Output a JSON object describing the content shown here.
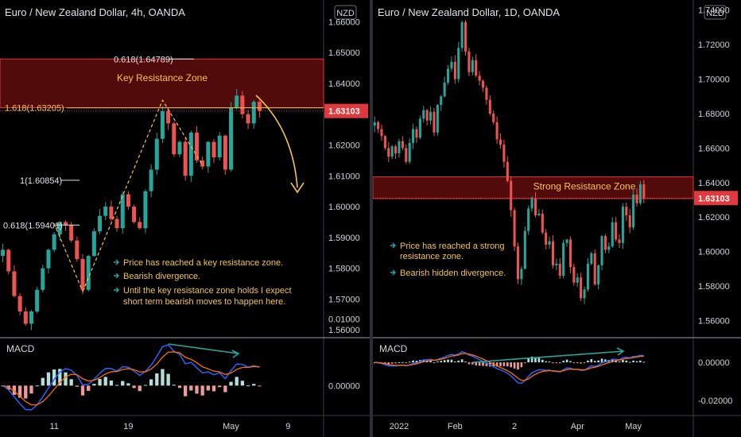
{
  "chart_data": [
    {
      "type": "candlestick",
      "title": "Euro / New Zealand Dollar, 4h, OANDA",
      "currency": "NZD",
      "ylim": [
        1.558,
        1.666
      ],
      "y_ticks": [
        "1.66000",
        "1.65000",
        "1.64000",
        "1.63000",
        "1.62000",
        "1.61000",
        "1.60000",
        "1.59000",
        "1.58000",
        "1.57000",
        "1.56000"
      ],
      "last_price": "1.63103",
      "x_ticks": [
        {
          "label": "11",
          "bar": 9
        },
        {
          "label": "19",
          "bar": 22
        },
        {
          "label": "May",
          "bar": 40
        },
        {
          "label": "9",
          "bar": 50
        }
      ],
      "closes": [
        1.586,
        1.579,
        1.571,
        1.566,
        1.562,
        1.566,
        1.573,
        1.58,
        1.586,
        1.591,
        1.595,
        1.594,
        1.589,
        1.583,
        1.573,
        1.584,
        1.592,
        1.597,
        1.6,
        1.596,
        1.593,
        1.604,
        1.6,
        1.595,
        1.593,
        1.605,
        1.612,
        1.622,
        1.631,
        1.627,
        1.617,
        1.621,
        1.61,
        1.624,
        1.615,
        1.613,
        1.621,
        1.616,
        1.623,
        1.612,
        1.632,
        1.636,
        1.63,
        1.627,
        1.634,
        1.631
      ],
      "zone": {
        "label": "Key Resistance Zone",
        "from": 1.6321,
        "to": 1.6479
      },
      "fib_levels": [
        {
          "label": "0.618(1.64789)",
          "value": 1.64789
        },
        {
          "label": "1.618(1.63205)",
          "value": 1.63205
        },
        {
          "label": "1(1.60854)",
          "value": 1.60854
        },
        {
          "label": "0.618(1.59401)",
          "value": 1.59401
        }
      ],
      "notes": [
        "Price has reached a key resistance zone.",
        "Bearish divergence.",
        "Until the key resistance zone holds I expect",
        "short term bearish moves to happen here."
      ],
      "macd": {
        "label": "MACD",
        "ylim": [
          -0.0045,
          0.0072
        ],
        "ticks": [
          "0.01000",
          "0.00000"
        ],
        "tick_values": [
          0.01,
          0.0
        ]
      }
    },
    {
      "type": "candlestick",
      "title": "Euro / New Zealand Dollar, 1D, OANDA",
      "currency": "NZD",
      "ylim": [
        1.551,
        1.744
      ],
      "y_ticks": [
        "1.74000",
        "1.72000",
        "1.70000",
        "1.68000",
        "1.66000",
        "1.64000",
        "1.62000",
        "1.60000",
        "1.58000",
        "1.56000"
      ],
      "last_price": "1.63103",
      "x_ticks": [
        {
          "label": "2022",
          "bar": 7
        },
        {
          "label": "Feb",
          "bar": 23
        },
        {
          "label": "2",
          "bar": 40
        },
        {
          "label": "Apr",
          "bar": 58
        },
        {
          "label": "May",
          "bar": 74
        }
      ],
      "closes": [
        1.675,
        1.671,
        1.667,
        1.66,
        1.655,
        1.661,
        1.657,
        1.664,
        1.66,
        1.652,
        1.663,
        1.671,
        1.666,
        1.677,
        1.682,
        1.676,
        1.681,
        1.669,
        1.685,
        1.69,
        1.698,
        1.706,
        1.71,
        1.7,
        1.718,
        1.733,
        1.716,
        1.704,
        1.711,
        1.702,
        1.699,
        1.695,
        1.688,
        1.68,
        1.675,
        1.665,
        1.662,
        1.652,
        1.641,
        1.624,
        1.603,
        1.584,
        1.59,
        1.612,
        1.625,
        1.631,
        1.621,
        1.622,
        1.611,
        1.604,
        1.606,
        1.592,
        1.593,
        1.586,
        1.605,
        1.607,
        1.591,
        1.582,
        1.585,
        1.573,
        1.578,
        1.593,
        1.599,
        1.581,
        1.592,
        1.609,
        1.601,
        1.603,
        1.617,
        1.607,
        1.605,
        1.626,
        1.621,
        1.614,
        1.633,
        1.628,
        1.639,
        1.631
      ],
      "zone": {
        "label": "Strong Resistance Zone",
        "from": 1.6307,
        "to": 1.6433
      },
      "notes": [
        "Price has reached a strong",
        "resistance zone.",
        "Bearish hidden divergence."
      ],
      "macd": {
        "label": "MACD",
        "ylim": [
          -0.028,
          0.013
        ],
        "ticks": [
          "0.00000",
          "-0.02000"
        ],
        "tick_values": [
          0.0,
          -0.02
        ]
      }
    }
  ]
}
